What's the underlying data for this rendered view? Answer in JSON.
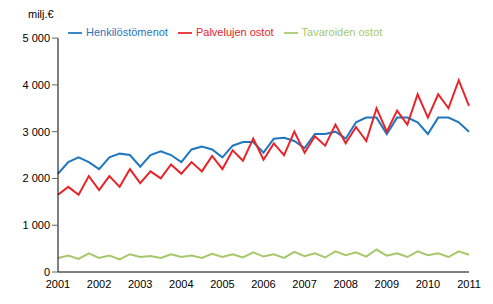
{
  "chart_data": {
    "type": "line",
    "y_label": "milj.€",
    "categories": [
      "2001",
      null,
      null,
      null,
      "2002",
      null,
      null,
      null,
      "2003",
      null,
      null,
      null,
      "2004",
      null,
      null,
      null,
      "2005",
      null,
      null,
      null,
      "2006",
      null,
      null,
      null,
      "2007",
      null,
      null,
      null,
      "2008",
      null,
      null,
      null,
      "2009",
      null,
      null,
      null,
      "2010",
      null,
      null,
      null,
      "2011"
    ],
    "series": [
      {
        "name": "Henkilöstömenot",
        "color": "#1f77c0",
        "values": [
          2100,
          2350,
          2450,
          2350,
          2200,
          2450,
          2530,
          2500,
          2250,
          2500,
          2580,
          2500,
          2350,
          2620,
          2680,
          2620,
          2450,
          2700,
          2780,
          2780,
          2550,
          2850,
          2870,
          2800,
          2650,
          2950,
          2950,
          3000,
          2850,
          3200,
          3300,
          3300,
          2950,
          3300,
          3300,
          3200,
          2950,
          3300,
          3300,
          3200,
          3000
        ]
      },
      {
        "name": "Palvelujen ostot",
        "color": "#e8242b",
        "values": [
          1650,
          1820,
          1650,
          2050,
          1750,
          2050,
          1820,
          2200,
          1900,
          2150,
          2000,
          2300,
          2100,
          2350,
          2150,
          2480,
          2200,
          2600,
          2380,
          2850,
          2400,
          2750,
          2500,
          3000,
          2550,
          2900,
          2700,
          3150,
          2750,
          3100,
          2800,
          3500,
          3000,
          3450,
          3150,
          3800,
          3300,
          3800,
          3500,
          4100,
          3550
        ]
      },
      {
        "name": "Tavaroiden ostot",
        "color": "#a6c86b",
        "values": [
          300,
          350,
          280,
          400,
          300,
          350,
          270,
          380,
          320,
          340,
          300,
          380,
          320,
          350,
          300,
          390,
          320,
          380,
          310,
          420,
          330,
          380,
          300,
          430,
          340,
          400,
          310,
          440,
          360,
          420,
          330,
          480,
          350,
          400,
          320,
          440,
          360,
          400,
          320,
          440,
          370
        ]
      }
    ],
    "ylim": [
      0,
      5000
    ],
    "yticks": [
      0,
      {
        "value": 1000,
        "label": "1 000"
      },
      {
        "value": 2000,
        "label": "2 000"
      },
      {
        "value": 3000,
        "label": "3 000"
      },
      {
        "value": 4000,
        "label": "4 000"
      },
      {
        "value": 5000,
        "label": "5 000"
      }
    ],
    "grid": false,
    "legend": "top-left"
  }
}
